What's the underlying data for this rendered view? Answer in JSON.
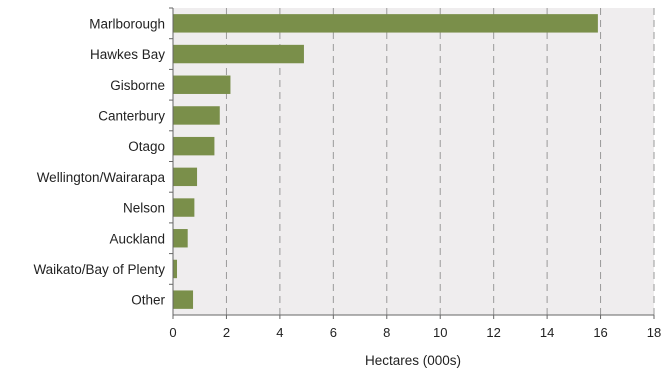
{
  "chart_data": {
    "type": "bar",
    "orientation": "horizontal",
    "categories": [
      "Marlborough",
      "Hawkes Bay",
      "Gisborne",
      "Canterbury",
      "Otago",
      "Wellington/Wairarapa",
      "Nelson",
      "Auckland",
      "Waikato/Bay of Plenty",
      "Other"
    ],
    "values": [
      15.9,
      4.9,
      2.15,
      1.75,
      1.55,
      0.9,
      0.8,
      0.55,
      0.15,
      0.75
    ],
    "title": "",
    "xlabel": "Hectares (000s)",
    "ylabel": "",
    "xlim": [
      0,
      18
    ],
    "xticks": [
      0,
      2,
      4,
      6,
      8,
      10,
      12,
      14,
      16,
      18
    ],
    "grid": "vertical dashed",
    "legend": "none",
    "colors": {
      "bar": "#7a8f4a",
      "plot_background": "#efedee",
      "gridline": "#9a9a9a",
      "axis": "#666666"
    }
  }
}
